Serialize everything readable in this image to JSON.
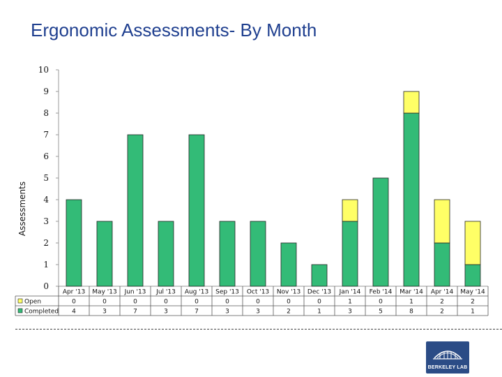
{
  "page_title": "Ergonomic Assessments- By Month",
  "logo_text": "BERKELEY LAB",
  "colors": {
    "open": "#ffff66",
    "completed": "#33bb77",
    "axis": "#999999"
  },
  "chart_data": {
    "type": "bar",
    "stacked": true,
    "title": "Ergonomic Assessments- By Month",
    "xlabel": "",
    "ylabel": "Assessments",
    "ylim": [
      0,
      10
    ],
    "yticks": [
      0,
      1,
      2,
      3,
      4,
      5,
      6,
      7,
      8,
      9,
      10
    ],
    "categories": [
      "Apr '13",
      "May '13",
      "Jun '13",
      "Jul '13",
      "Aug '13",
      "Sep '13",
      "Oct '13",
      "Nov '13",
      "Dec '13",
      "Jan '14",
      "Feb '14",
      "Mar '14",
      "Apr '14",
      "May '14"
    ],
    "series": [
      {
        "name": "Completed",
        "values": [
          4,
          3,
          7,
          3,
          7,
          3,
          3,
          2,
          1,
          3,
          5,
          8,
          2,
          1
        ]
      },
      {
        "name": "Open",
        "values": [
          0,
          0,
          0,
          0,
          0,
          0,
          0,
          0,
          0,
          1,
          0,
          1,
          2,
          2
        ]
      }
    ],
    "data_table": true
  }
}
